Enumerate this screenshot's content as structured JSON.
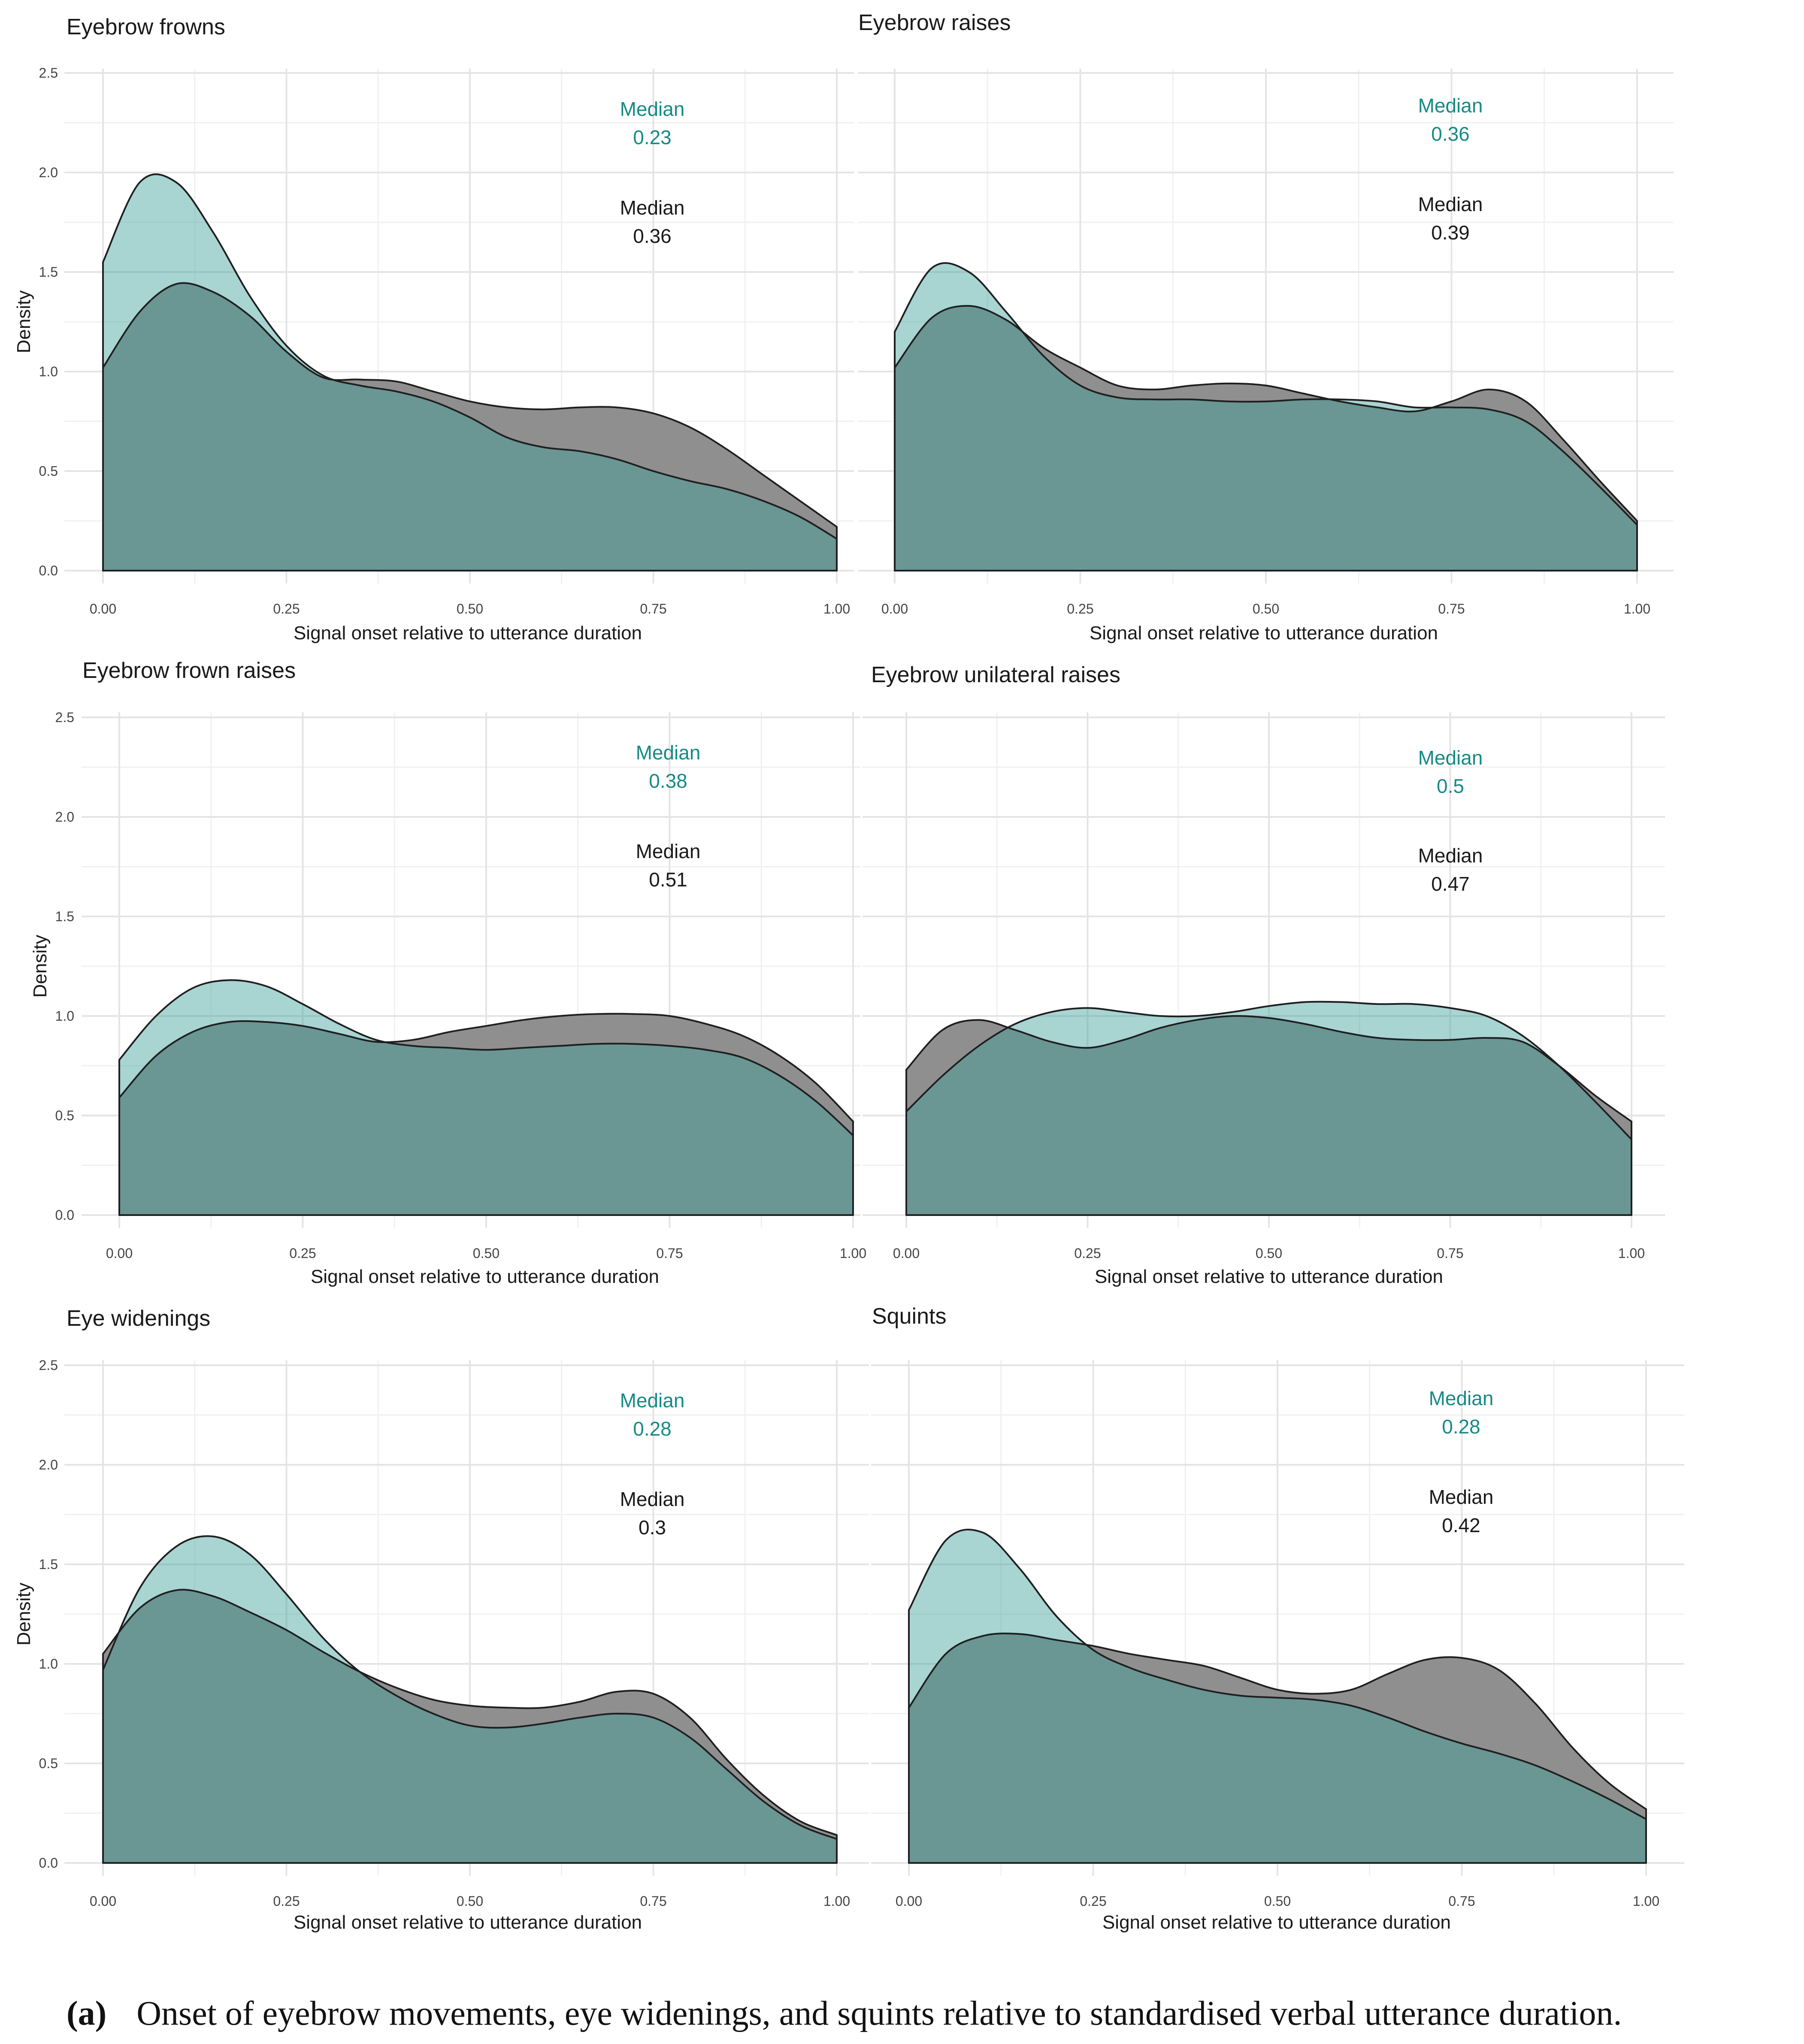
{
  "colors": {
    "teal_fill": "#8ec6c4",
    "grey_fill": "#8f8f8f",
    "overlap": "#6f8987",
    "teal_text": "#168a85",
    "grey_text": "#1a1a1a",
    "outline": "#1f1f1f"
  },
  "chart_data": [
    {
      "type": "area",
      "title": "Eyebrow frowns",
      "xlabel": "Signal onset relative to utterance duration",
      "ylabel": "Density",
      "xlim": [
        0,
        1
      ],
      "ylim": [
        0,
        2.5
      ],
      "x_ticks": [
        "0.00",
        "0.25",
        "0.50",
        "0.75",
        "1.00"
      ],
      "y_ticks": [
        "0.0",
        "0.5",
        "1.0",
        "1.5",
        "2.0",
        "2.5"
      ],
      "x": [
        0.0,
        0.05,
        0.1,
        0.15,
        0.2,
        0.25,
        0.3,
        0.35,
        0.4,
        0.45,
        0.5,
        0.55,
        0.6,
        0.65,
        0.7,
        0.75,
        0.8,
        0.85,
        0.9,
        0.95,
        1.0
      ],
      "series": [
        {
          "name": "teal",
          "median_label": "Median",
          "median": "0.23",
          "values": [
            1.55,
            1.95,
            1.95,
            1.7,
            1.38,
            1.13,
            0.98,
            0.93,
            0.9,
            0.85,
            0.77,
            0.67,
            0.62,
            0.6,
            0.56,
            0.5,
            0.45,
            0.41,
            0.35,
            0.27,
            0.16
          ]
        },
        {
          "name": "grey",
          "median_label": "Median",
          "median": "0.36",
          "values": [
            1.02,
            1.3,
            1.44,
            1.4,
            1.28,
            1.1,
            0.97,
            0.96,
            0.95,
            0.9,
            0.85,
            0.82,
            0.81,
            0.82,
            0.82,
            0.79,
            0.72,
            0.61,
            0.48,
            0.35,
            0.22
          ]
        }
      ]
    },
    {
      "type": "area",
      "title": "Eyebrow raises",
      "xlabel": "Signal onset relative to utterance duration",
      "ylabel": "",
      "xlim": [
        0,
        1
      ],
      "ylim": [
        0,
        2.5
      ],
      "x_ticks": [
        "0.00",
        "0.25",
        "0.50",
        "0.75",
        "1.00"
      ],
      "y_ticks": [],
      "x": [
        0.0,
        0.05,
        0.1,
        0.15,
        0.2,
        0.25,
        0.3,
        0.35,
        0.4,
        0.45,
        0.5,
        0.55,
        0.6,
        0.65,
        0.7,
        0.75,
        0.8,
        0.85,
        0.9,
        0.95,
        1.0
      ],
      "series": [
        {
          "name": "teal",
          "median_label": "Median",
          "median": "0.36",
          "values": [
            1.2,
            1.52,
            1.5,
            1.3,
            1.08,
            0.93,
            0.87,
            0.86,
            0.86,
            0.85,
            0.85,
            0.86,
            0.86,
            0.85,
            0.82,
            0.82,
            0.81,
            0.75,
            0.6,
            0.42,
            0.23
          ]
        },
        {
          "name": "grey",
          "median_label": "Median",
          "median": "0.39",
          "values": [
            1.02,
            1.27,
            1.33,
            1.26,
            1.12,
            1.02,
            0.93,
            0.91,
            0.93,
            0.94,
            0.93,
            0.89,
            0.85,
            0.82,
            0.8,
            0.85,
            0.91,
            0.85,
            0.66,
            0.45,
            0.25
          ]
        }
      ]
    },
    {
      "type": "area",
      "title": "Eyebrow frown raises",
      "xlabel": "Signal onset relative to utterance duration",
      "ylabel": "Density",
      "xlim": [
        0,
        1
      ],
      "ylim": [
        0,
        2.5
      ],
      "x_ticks": [
        "0.00",
        "0.25",
        "0.50",
        "0.75",
        "1.00"
      ],
      "y_ticks": [
        "0.0",
        "0.5",
        "1.0",
        "1.5",
        "2.0",
        "2.5"
      ],
      "x": [
        0.0,
        0.05,
        0.1,
        0.15,
        0.2,
        0.25,
        0.3,
        0.35,
        0.4,
        0.45,
        0.5,
        0.55,
        0.6,
        0.65,
        0.7,
        0.75,
        0.8,
        0.85,
        0.9,
        0.95,
        1.0
      ],
      "series": [
        {
          "name": "teal",
          "median_label": "Median",
          "median": "0.38",
          "values": [
            0.78,
            1.0,
            1.14,
            1.18,
            1.15,
            1.06,
            0.96,
            0.88,
            0.85,
            0.84,
            0.83,
            0.84,
            0.85,
            0.86,
            0.86,
            0.85,
            0.83,
            0.79,
            0.7,
            0.57,
            0.4
          ]
        },
        {
          "name": "grey",
          "median_label": "Median",
          "median": "0.51",
          "values": [
            0.59,
            0.8,
            0.92,
            0.97,
            0.97,
            0.95,
            0.91,
            0.87,
            0.88,
            0.92,
            0.95,
            0.98,
            1.0,
            1.01,
            1.01,
            1.0,
            0.96,
            0.9,
            0.8,
            0.66,
            0.47
          ]
        }
      ]
    },
    {
      "type": "area",
      "title": "Eyebrow unilateral raises",
      "xlabel": "Signal onset relative to utterance duration",
      "ylabel": "",
      "xlim": [
        0,
        1
      ],
      "ylim": [
        0,
        2.5
      ],
      "x_ticks": [
        "0.00",
        "0.25",
        "0.50",
        "0.75",
        "1.00"
      ],
      "y_ticks": [],
      "x": [
        0.0,
        0.05,
        0.1,
        0.15,
        0.2,
        0.25,
        0.3,
        0.35,
        0.4,
        0.45,
        0.5,
        0.55,
        0.6,
        0.65,
        0.7,
        0.75,
        0.8,
        0.85,
        0.9,
        0.95,
        1.0
      ],
      "series": [
        {
          "name": "teal",
          "median_label": "Median",
          "median": "0.5",
          "values": [
            0.52,
            0.7,
            0.85,
            0.96,
            1.02,
            1.04,
            1.02,
            1.0,
            1.0,
            1.02,
            1.05,
            1.07,
            1.07,
            1.06,
            1.06,
            1.04,
            1.0,
            0.9,
            0.75,
            0.57,
            0.38
          ]
        },
        {
          "name": "grey",
          "median_label": "Median",
          "median": "0.47",
          "values": [
            0.73,
            0.93,
            0.98,
            0.93,
            0.87,
            0.84,
            0.88,
            0.94,
            0.98,
            1.0,
            0.99,
            0.96,
            0.92,
            0.89,
            0.88,
            0.88,
            0.89,
            0.87,
            0.75,
            0.6,
            0.47
          ]
        }
      ]
    },
    {
      "type": "area",
      "title": "Eye widenings",
      "xlabel": "Signal onset relative to utterance duration",
      "ylabel": "Density",
      "xlim": [
        0,
        1
      ],
      "ylim": [
        0,
        2.5
      ],
      "x_ticks": [
        "0.00",
        "0.25",
        "0.50",
        "0.75",
        "1.00"
      ],
      "y_ticks": [
        "0.0",
        "0.5",
        "1.0",
        "1.5",
        "2.0",
        "2.5"
      ],
      "x": [
        0.0,
        0.05,
        0.1,
        0.15,
        0.2,
        0.25,
        0.3,
        0.35,
        0.4,
        0.45,
        0.5,
        0.55,
        0.6,
        0.65,
        0.7,
        0.75,
        0.8,
        0.85,
        0.9,
        0.95,
        1.0
      ],
      "series": [
        {
          "name": "teal",
          "median_label": "Median",
          "median": "0.28",
          "values": [
            0.97,
            1.38,
            1.59,
            1.64,
            1.55,
            1.35,
            1.13,
            0.96,
            0.84,
            0.75,
            0.69,
            0.68,
            0.7,
            0.73,
            0.75,
            0.73,
            0.63,
            0.47,
            0.31,
            0.19,
            0.12
          ]
        },
        {
          "name": "grey",
          "median_label": "Median",
          "median": "0.3",
          "values": [
            1.05,
            1.28,
            1.37,
            1.34,
            1.26,
            1.17,
            1.06,
            0.96,
            0.88,
            0.82,
            0.79,
            0.78,
            0.78,
            0.81,
            0.86,
            0.85,
            0.73,
            0.52,
            0.34,
            0.21,
            0.14
          ]
        }
      ]
    },
    {
      "type": "area",
      "title": "Squints",
      "xlabel": "Signal onset relative to utterance duration",
      "ylabel": "",
      "xlim": [
        0,
        1
      ],
      "ylim": [
        0,
        2.5
      ],
      "x_ticks": [
        "0.00",
        "0.25",
        "0.50",
        "0.75",
        "1.00"
      ],
      "y_ticks": [],
      "x": [
        0.0,
        0.05,
        0.1,
        0.15,
        0.2,
        0.25,
        0.3,
        0.35,
        0.4,
        0.45,
        0.5,
        0.55,
        0.6,
        0.65,
        0.7,
        0.75,
        0.8,
        0.85,
        0.9,
        0.95,
        1.0
      ],
      "series": [
        {
          "name": "teal",
          "median_label": "Median",
          "median": "0.28",
          "values": [
            1.27,
            1.62,
            1.66,
            1.48,
            1.24,
            1.07,
            0.98,
            0.92,
            0.87,
            0.84,
            0.83,
            0.82,
            0.79,
            0.73,
            0.66,
            0.6,
            0.55,
            0.49,
            0.41,
            0.32,
            0.22
          ]
        },
        {
          "name": "grey",
          "median_label": "Median",
          "median": "0.42",
          "values": [
            0.78,
            1.05,
            1.14,
            1.15,
            1.12,
            1.09,
            1.05,
            1.02,
            0.99,
            0.93,
            0.87,
            0.85,
            0.87,
            0.95,
            1.02,
            1.03,
            0.97,
            0.8,
            0.58,
            0.4,
            0.27
          ]
        }
      ]
    }
  ],
  "caption": {
    "label": "(a)",
    "text": "Onset of eyebrow movements, eye widenings, and squints relative to standardised verbal utterance duration."
  }
}
